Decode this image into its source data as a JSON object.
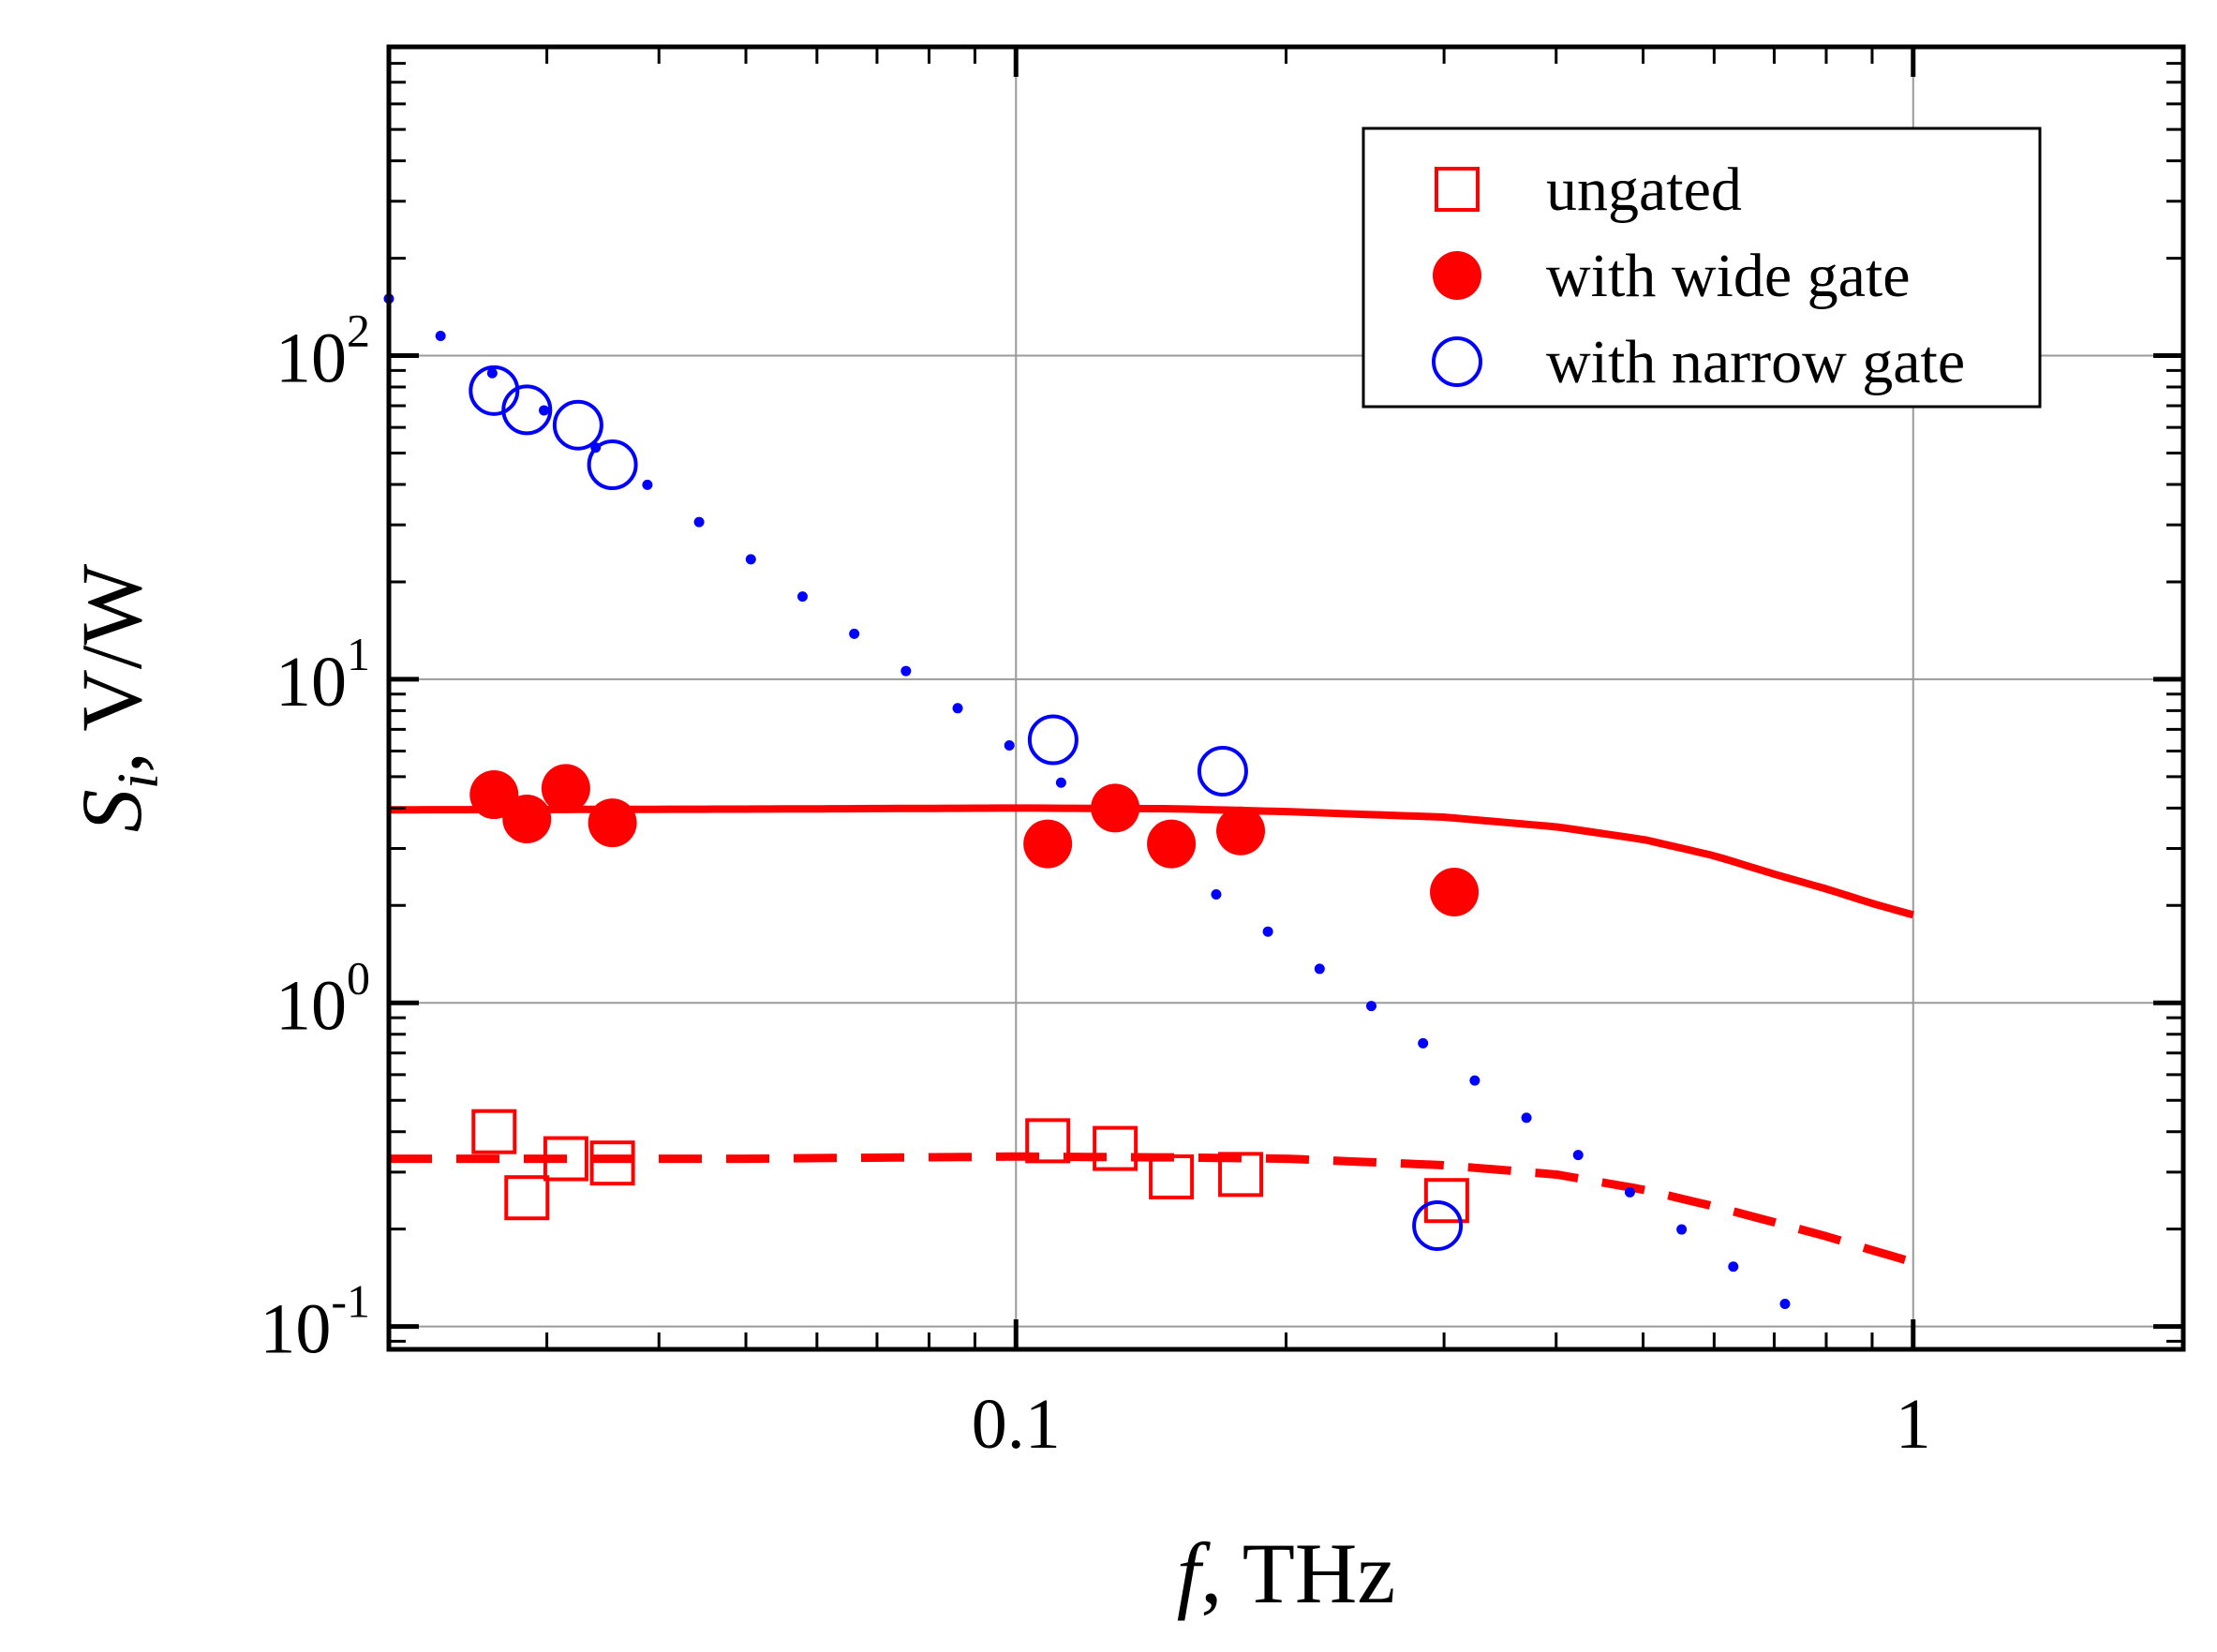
{
  "chart_data": {
    "type": "scatter",
    "title": "",
    "xlabel": {
      "var": "f",
      "sep": ", ",
      "unit": "THz"
    },
    "ylabel": {
      "var": "S",
      "sub": "i",
      "sep": ", ",
      "unit": "V/W"
    },
    "xscale": "log",
    "yscale": "log",
    "xlim": [
      0.02,
      2.0
    ],
    "ylim": [
      0.085,
      900
    ],
    "x_ticks": [
      {
        "value": 0.1,
        "label": "0.1"
      },
      {
        "value": 1,
        "label": "1"
      }
    ],
    "y_ticks": [
      {
        "value": 0.1,
        "base": "10",
        "exp": "-1"
      },
      {
        "value": 1,
        "base": "10",
        "exp": "0"
      },
      {
        "value": 10,
        "base": "10",
        "exp": "1"
      },
      {
        "value": 100,
        "base": "10",
        "exp": "2"
      }
    ],
    "grid": true,
    "legend_position": "top-right",
    "colors": {
      "red": "#ff0000",
      "blue": "#0000ff"
    },
    "series": [
      {
        "name": "ungated",
        "marker": "open-square",
        "color": "#ff0000",
        "points": [
          [
            0.0262,
            0.4
          ],
          [
            0.0285,
            0.25
          ],
          [
            0.0315,
            0.33
          ],
          [
            0.0355,
            0.32
          ],
          [
            0.1085,
            0.375
          ],
          [
            0.129,
            0.355
          ],
          [
            0.149,
            0.29
          ],
          [
            0.178,
            0.295
          ],
          [
            0.302,
            0.245
          ]
        ]
      },
      {
        "name": "with wide gate",
        "marker": "filled-circle",
        "color": "#ff0000",
        "points": [
          [
            0.0262,
            4.4
          ],
          [
            0.0285,
            3.7
          ],
          [
            0.0315,
            4.6
          ],
          [
            0.0355,
            3.6
          ],
          [
            0.1085,
            3.1
          ],
          [
            0.129,
            4.0
          ],
          [
            0.149,
            3.1
          ],
          [
            0.178,
            3.4
          ],
          [
            0.308,
            2.2
          ]
        ]
      },
      {
        "name": "with narrow gate",
        "marker": "open-circle",
        "color": "#0000ff",
        "points": [
          [
            0.0262,
            78
          ],
          [
            0.0285,
            68
          ],
          [
            0.0325,
            61
          ],
          [
            0.0355,
            46
          ],
          [
            0.11,
            6.5
          ],
          [
            0.17,
            5.2
          ],
          [
            0.295,
            0.205
          ]
        ]
      }
    ],
    "fit_lines": [
      {
        "name": "wide-gate-fit",
        "style": "solid",
        "color": "#ff0000",
        "points": [
          [
            0.02,
            3.95
          ],
          [
            0.05,
            3.97
          ],
          [
            0.1,
            4.0
          ],
          [
            0.15,
            3.98
          ],
          [
            0.2,
            3.9
          ],
          [
            0.3,
            3.75
          ],
          [
            0.4,
            3.5
          ],
          [
            0.5,
            3.2
          ],
          [
            0.6,
            2.85
          ],
          [
            0.7,
            2.5
          ],
          [
            0.8,
            2.25
          ],
          [
            0.9,
            2.03
          ],
          [
            1.0,
            1.87
          ]
        ]
      },
      {
        "name": "ungated-fit",
        "style": "dashed",
        "color": "#ff0000",
        "points": [
          [
            0.02,
            0.33
          ],
          [
            0.05,
            0.33
          ],
          [
            0.1,
            0.335
          ],
          [
            0.15,
            0.333
          ],
          [
            0.2,
            0.33
          ],
          [
            0.3,
            0.315
          ],
          [
            0.4,
            0.295
          ],
          [
            0.5,
            0.265
          ],
          [
            0.6,
            0.235
          ],
          [
            0.7,
            0.21
          ],
          [
            0.8,
            0.19
          ],
          [
            0.9,
            0.172
          ],
          [
            1.0,
            0.158
          ]
        ]
      },
      {
        "name": "narrow-gate-fit",
        "style": "dotted",
        "color": "#0000ff",
        "points": [
          [
            0.02,
            150
          ],
          [
            0.78,
            0.1
          ]
        ]
      }
    ]
  }
}
